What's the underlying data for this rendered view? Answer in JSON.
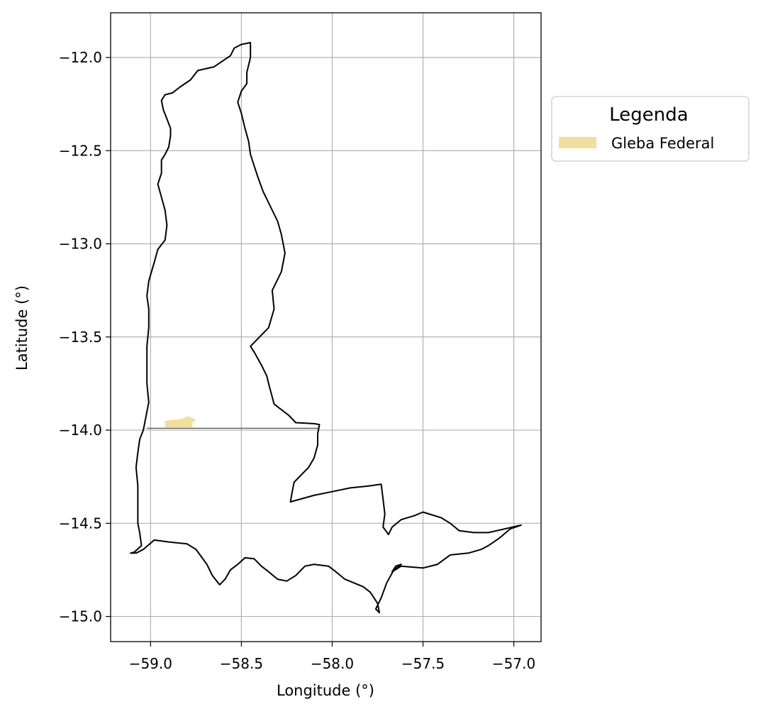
{
  "chart_data": {
    "type": "map",
    "xlabel": "Longitude (°)",
    "ylabel": "Latitude (°)",
    "xlim": [
      -59.22,
      -56.85
    ],
    "ylim": [
      -15.135,
      -11.76
    ],
    "xticks": [
      -59.0,
      -58.5,
      -58.0,
      -57.5,
      -57.0
    ],
    "xtick_labels": [
      "−59.0",
      "−58.5",
      "−58.0",
      "−57.5",
      "−57.0"
    ],
    "yticks": [
      -12.0,
      -12.5,
      -13.0,
      -13.5,
      -14.0,
      -14.5,
      -15.0
    ],
    "ytick_labels": [
      "−12.0",
      "−12.5",
      "−13.0",
      "−13.5",
      "−14.0",
      "−14.5",
      "−15.0"
    ],
    "grid": true,
    "legend": {
      "title": "Legenda",
      "placement": "upper-right-outside",
      "entries": [
        {
          "label": "Gleba Federal",
          "color": "#f2de9d"
        }
      ]
    },
    "boundary_color": "#000000",
    "boundary": [
      [
        -58.45,
        -11.92
      ],
      [
        -58.5,
        -11.93
      ],
      [
        -58.54,
        -11.95
      ],
      [
        -58.56,
        -11.99
      ],
      [
        -58.65,
        -12.05
      ],
      [
        -58.74,
        -12.07
      ],
      [
        -58.78,
        -12.12
      ],
      [
        -58.84,
        -12.16
      ],
      [
        -58.88,
        -12.19
      ],
      [
        -58.92,
        -12.2
      ],
      [
        -58.94,
        -12.23
      ],
      [
        -58.93,
        -12.28
      ],
      [
        -58.91,
        -12.33
      ],
      [
        -58.89,
        -12.38
      ],
      [
        -58.89,
        -12.42
      ],
      [
        -58.9,
        -12.48
      ],
      [
        -58.92,
        -12.52
      ],
      [
        -58.94,
        -12.55
      ],
      [
        -58.94,
        -12.62
      ],
      [
        -58.96,
        -12.68
      ],
      [
        -58.94,
        -12.75
      ],
      [
        -58.92,
        -12.82
      ],
      [
        -58.91,
        -12.9
      ],
      [
        -58.92,
        -12.98
      ],
      [
        -58.96,
        -13.03
      ],
      [
        -58.98,
        -13.1
      ],
      [
        -59.01,
        -13.2
      ],
      [
        -59.02,
        -13.28
      ],
      [
        -59.01,
        -13.35
      ],
      [
        -59.01,
        -13.45
      ],
      [
        -59.02,
        -13.55
      ],
      [
        -59.02,
        -13.65
      ],
      [
        -59.02,
        -13.75
      ],
      [
        -59.01,
        -13.85
      ],
      [
        -59.03,
        -13.95
      ],
      [
        -59.04,
        -14.0
      ],
      [
        -59.06,
        -14.05
      ],
      [
        -59.07,
        -14.12
      ],
      [
        -59.08,
        -14.2
      ],
      [
        -59.07,
        -14.3
      ],
      [
        -59.07,
        -14.4
      ],
      [
        -59.07,
        -14.5
      ],
      [
        -59.06,
        -14.55
      ],
      [
        -59.05,
        -14.62
      ],
      [
        -59.09,
        -14.655
      ],
      [
        -59.11,
        -14.66
      ],
      [
        -59.08,
        -14.66
      ],
      [
        -59.04,
        -14.64
      ],
      [
        -58.98,
        -14.59
      ],
      [
        -58.9,
        -14.6
      ],
      [
        -58.8,
        -14.61
      ],
      [
        -58.75,
        -14.64
      ],
      [
        -58.72,
        -14.68
      ],
      [
        -58.69,
        -14.72
      ],
      [
        -58.66,
        -14.78
      ],
      [
        -58.62,
        -14.83
      ],
      [
        -58.59,
        -14.8
      ],
      [
        -58.56,
        -14.75
      ],
      [
        -58.52,
        -14.72
      ],
      [
        -58.48,
        -14.685
      ],
      [
        -58.43,
        -14.69
      ],
      [
        -58.39,
        -14.73
      ],
      [
        -58.35,
        -14.76
      ],
      [
        -58.3,
        -14.8
      ],
      [
        -58.25,
        -14.81
      ],
      [
        -58.2,
        -14.78
      ],
      [
        -58.15,
        -14.73
      ],
      [
        -58.1,
        -14.72
      ],
      [
        -58.02,
        -14.73
      ],
      [
        -57.98,
        -14.76
      ],
      [
        -57.93,
        -14.8
      ],
      [
        -57.88,
        -14.82
      ],
      [
        -57.83,
        -14.84
      ],
      [
        -57.79,
        -14.87
      ],
      [
        -57.77,
        -14.9
      ],
      [
        -57.75,
        -14.93
      ],
      [
        -57.74,
        -14.98
      ],
      [
        -57.76,
        -14.96
      ],
      [
        -57.73,
        -14.9
      ],
      [
        -57.7,
        -14.82
      ],
      [
        -57.66,
        -14.75
      ],
      [
        -57.62,
        -14.72
      ],
      [
        -57.65,
        -14.73
      ],
      [
        -57.67,
        -14.76
      ],
      [
        -57.62,
        -14.73
      ],
      [
        -57.5,
        -14.74
      ],
      [
        -57.42,
        -14.72
      ],
      [
        -57.35,
        -14.67
      ],
      [
        -57.25,
        -14.66
      ],
      [
        -57.18,
        -14.64
      ],
      [
        -57.14,
        -14.62
      ],
      [
        -57.08,
        -14.58
      ],
      [
        -57.02,
        -14.53
      ],
      [
        -56.96,
        -14.51
      ],
      [
        -57.05,
        -14.53
      ],
      [
        -57.14,
        -14.55
      ],
      [
        -57.22,
        -14.55
      ],
      [
        -57.3,
        -14.54
      ],
      [
        -57.35,
        -14.5
      ],
      [
        -57.4,
        -14.47
      ],
      [
        -57.5,
        -14.44
      ],
      [
        -57.55,
        -14.46
      ],
      [
        -57.62,
        -14.48
      ],
      [
        -57.67,
        -14.52
      ],
      [
        -57.69,
        -14.56
      ],
      [
        -57.72,
        -14.52
      ],
      [
        -57.71,
        -14.45
      ],
      [
        -57.72,
        -14.37
      ],
      [
        -57.73,
        -14.29
      ],
      [
        -57.8,
        -14.3
      ],
      [
        -57.9,
        -14.31
      ],
      [
        -58.0,
        -14.33
      ],
      [
        -58.1,
        -14.35
      ],
      [
        -58.23,
        -14.385
      ],
      [
        -58.22,
        -14.33
      ],
      [
        -58.21,
        -14.28
      ],
      [
        -58.17,
        -14.24
      ],
      [
        -58.13,
        -14.2
      ],
      [
        -58.1,
        -14.15
      ],
      [
        -58.08,
        -14.08
      ],
      [
        -58.08,
        -14.02
      ],
      [
        -58.07,
        -13.97
      ],
      [
        -58.1,
        -13.965
      ],
      [
        -58.2,
        -13.96
      ],
      [
        -58.24,
        -13.92
      ],
      [
        -58.28,
        -13.89
      ],
      [
        -58.32,
        -13.86
      ],
      [
        -58.35,
        -13.75
      ],
      [
        -58.36,
        -13.71
      ],
      [
        -58.39,
        -13.65
      ],
      [
        -58.43,
        -13.58
      ],
      [
        -58.45,
        -13.55
      ],
      [
        -58.4,
        -13.5
      ],
      [
        -58.35,
        -13.45
      ],
      [
        -58.32,
        -13.35
      ],
      [
        -58.33,
        -13.25
      ],
      [
        -58.28,
        -13.15
      ],
      [
        -58.26,
        -13.05
      ],
      [
        -58.28,
        -12.95
      ],
      [
        -58.3,
        -12.88
      ],
      [
        -58.34,
        -12.8
      ],
      [
        -58.38,
        -12.72
      ],
      [
        -58.41,
        -12.64
      ],
      [
        -58.43,
        -12.58
      ],
      [
        -58.45,
        -12.52
      ],
      [
        -58.46,
        -12.45
      ],
      [
        -58.48,
        -12.38
      ],
      [
        -58.5,
        -12.3
      ],
      [
        -58.52,
        -12.24
      ],
      [
        -58.5,
        -12.18
      ],
      [
        -58.47,
        -12.14
      ],
      [
        -58.47,
        -12.08
      ],
      [
        -58.45,
        -12.0
      ],
      [
        -58.45,
        -11.95
      ],
      [
        -58.45,
        -11.92
      ]
    ],
    "internal_line": [
      [
        -59.02,
        -13.99
      ],
      [
        -58.07,
        -13.99
      ]
    ],
    "gleba_federal": [
      [
        -58.92,
        -13.95
      ],
      [
        -58.83,
        -13.94
      ],
      [
        -58.79,
        -13.925
      ],
      [
        -58.75,
        -13.945
      ],
      [
        -58.77,
        -13.96
      ],
      [
        -58.77,
        -13.985
      ],
      [
        -58.92,
        -13.985
      ]
    ]
  }
}
